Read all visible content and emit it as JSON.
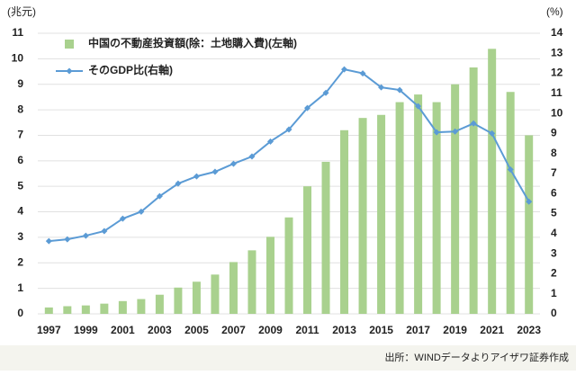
{
  "chart_data": {
    "type": "bar",
    "y_unit": "(兆元)",
    "y2_unit": "(%)",
    "source": "出所：WINDデータよりアイザワ証券作成",
    "x": [
      1997,
      1998,
      1999,
      2000,
      2001,
      2002,
      2003,
      2004,
      2005,
      2006,
      2007,
      2008,
      2009,
      2010,
      2011,
      2012,
      2013,
      2014,
      2015,
      2016,
      2017,
      2018,
      2019,
      2020,
      2021,
      2022,
      2023
    ],
    "xlim": [
      1996.4,
      2023.6
    ],
    "xticks": [
      1997,
      1999,
      2001,
      2003,
      2005,
      2007,
      2009,
      2011,
      2013,
      2015,
      2017,
      2019,
      2021,
      2023
    ],
    "ylim": [
      0,
      11
    ],
    "yticks": [
      0,
      1,
      2,
      3,
      4,
      5,
      6,
      7,
      8,
      9,
      10,
      11
    ],
    "y2lim": [
      0,
      14
    ],
    "y2ticks": [
      0,
      1,
      2,
      3,
      4,
      5,
      6,
      7,
      8,
      9,
      10,
      11,
      12,
      13,
      14
    ],
    "grid": true,
    "legend": "upper left",
    "series": [
      {
        "name": "中国の不動産投資額(除：土地購入費)(左軸)",
        "type": "bar",
        "color": "#a9d18e",
        "values": [
          0.25,
          0.3,
          0.33,
          0.4,
          0.5,
          0.58,
          0.75,
          1.03,
          1.26,
          1.54,
          2.03,
          2.49,
          3.02,
          3.78,
          5.0,
          5.96,
          7.2,
          7.68,
          7.8,
          8.3,
          8.6,
          8.3,
          9.0,
          9.66,
          10.39,
          8.7,
          7.0
        ]
      },
      {
        "name": "そのGDP比(右軸)",
        "type": "line",
        "axis": "y2",
        "color": "#5b9bd5",
        "values": [
          3.63,
          3.72,
          3.9,
          4.13,
          4.75,
          5.1,
          5.87,
          6.5,
          6.86,
          7.09,
          7.49,
          7.85,
          8.6,
          9.2,
          10.27,
          11.03,
          12.2,
          12.0,
          11.3,
          11.17,
          10.36,
          9.06,
          9.1,
          9.5,
          9.0,
          7.2,
          5.6
        ]
      }
    ]
  }
}
